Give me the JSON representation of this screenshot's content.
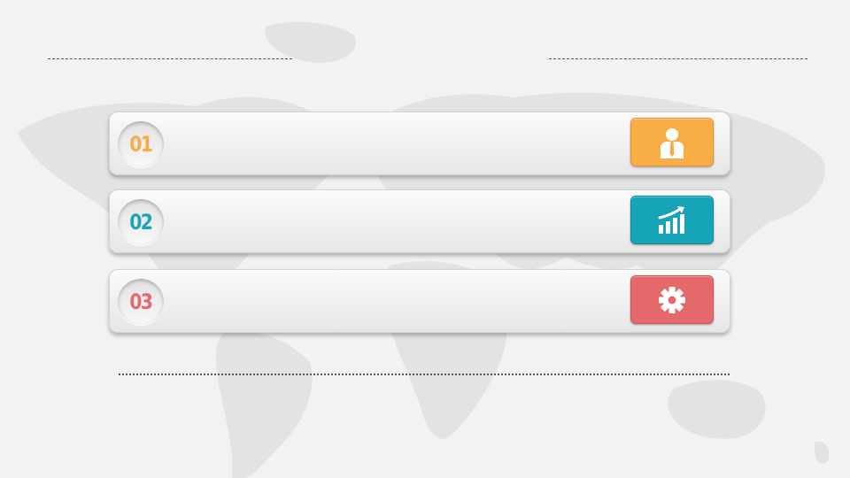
{
  "items": [
    {
      "number": "01",
      "icon": "person-icon",
      "color": "#f8ad45"
    },
    {
      "number": "02",
      "icon": "growth-chart-icon",
      "color": "#16a4b8"
    },
    {
      "number": "03",
      "icon": "gear-icon",
      "color": "#e5696b"
    }
  ],
  "background": {
    "color": "#f2f2f2",
    "decoration": "world-map"
  }
}
